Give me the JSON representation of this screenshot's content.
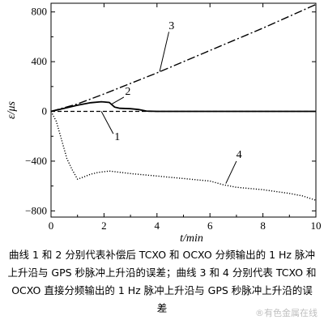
{
  "chart_data": {
    "type": "line",
    "xlabel": "t/min",
    "ylabel": "ε/μs",
    "xlim": [
      0,
      10
    ],
    "ylim": [
      -850,
      870
    ],
    "x_ticks": [
      0,
      2,
      4,
      6,
      8,
      10
    ],
    "y_ticks": [
      -800,
      -400,
      0,
      400,
      800
    ],
    "grid": false,
    "series": [
      {
        "name": "1",
        "style": "dashed",
        "x": [
          0,
          10
        ],
        "y": [
          0,
          0
        ]
      },
      {
        "name": "2",
        "style": "solid",
        "x": [
          0,
          0.5,
          1.0,
          1.5,
          1.9,
          2.2,
          2.4,
          2.6,
          3.0,
          3.3,
          3.6,
          4.0,
          10
        ],
        "y": [
          0,
          25,
          50,
          70,
          78,
          72,
          35,
          25,
          22,
          15,
          3,
          0,
          0
        ]
      },
      {
        "name": "3",
        "style": "dash-dot",
        "x": [
          0,
          1,
          2,
          4,
          6,
          8,
          10
        ],
        "y": [
          0,
          60,
          140,
          310,
          490,
          670,
          860
        ]
      },
      {
        "name": "4",
        "style": "dotted",
        "x": [
          0,
          0.2,
          0.4,
          0.6,
          0.8,
          1.0,
          1.2,
          1.5,
          1.8,
          2.2,
          2.6,
          3.0,
          3.5,
          4.0,
          4.5,
          5.0,
          5.5,
          6.0,
          6.5,
          7.0,
          7.5,
          8.0,
          8.5,
          9.0,
          9.5,
          10.0
        ],
        "y": [
          0,
          -80,
          -230,
          -380,
          -470,
          -545,
          -530,
          -505,
          -490,
          -480,
          -490,
          -500,
          -510,
          -520,
          -530,
          -540,
          -550,
          -560,
          -590,
          -610,
          -620,
          -630,
          -645,
          -660,
          -680,
          -715
        ]
      }
    ]
  },
  "caption": "曲线 1 和 2 分别代表补偿后 TCXO 和 OCXO 分频输出的 1 Hz 脉冲上升沿与 GPS 秒脉冲上升沿的误差；曲线 3 和 4 分别代表 TCXO 和 OCXO 直接分频输出的 1 Hz 脉冲上升沿与 GPS 秒脉冲上升沿的误差",
  "watermark": "®有色金属在线"
}
